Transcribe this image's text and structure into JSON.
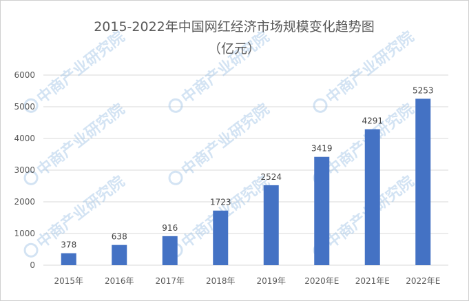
{
  "chart_data": {
    "type": "bar",
    "title": "2015-2022年中国网红经济市场规模变化趋势图",
    "subtitle": "（亿元）",
    "categories": [
      "2015年",
      "2016年",
      "2017年",
      "2018年",
      "2019年",
      "2020年E",
      "2021年E",
      "2022年E"
    ],
    "values": [
      378,
      638,
      916,
      1723,
      2524,
      3419,
      4291,
      5253
    ],
    "ylim": [
      0,
      6000
    ],
    "yticks": [
      0,
      1000,
      2000,
      3000,
      4000,
      5000,
      6000
    ],
    "grid": true,
    "bar_color": "#4472c4",
    "gridline_color": "#d9d9d9",
    "data_labels": true
  },
  "watermark": {
    "text": "中商产业研究院",
    "color": "#9fc3e6"
  }
}
